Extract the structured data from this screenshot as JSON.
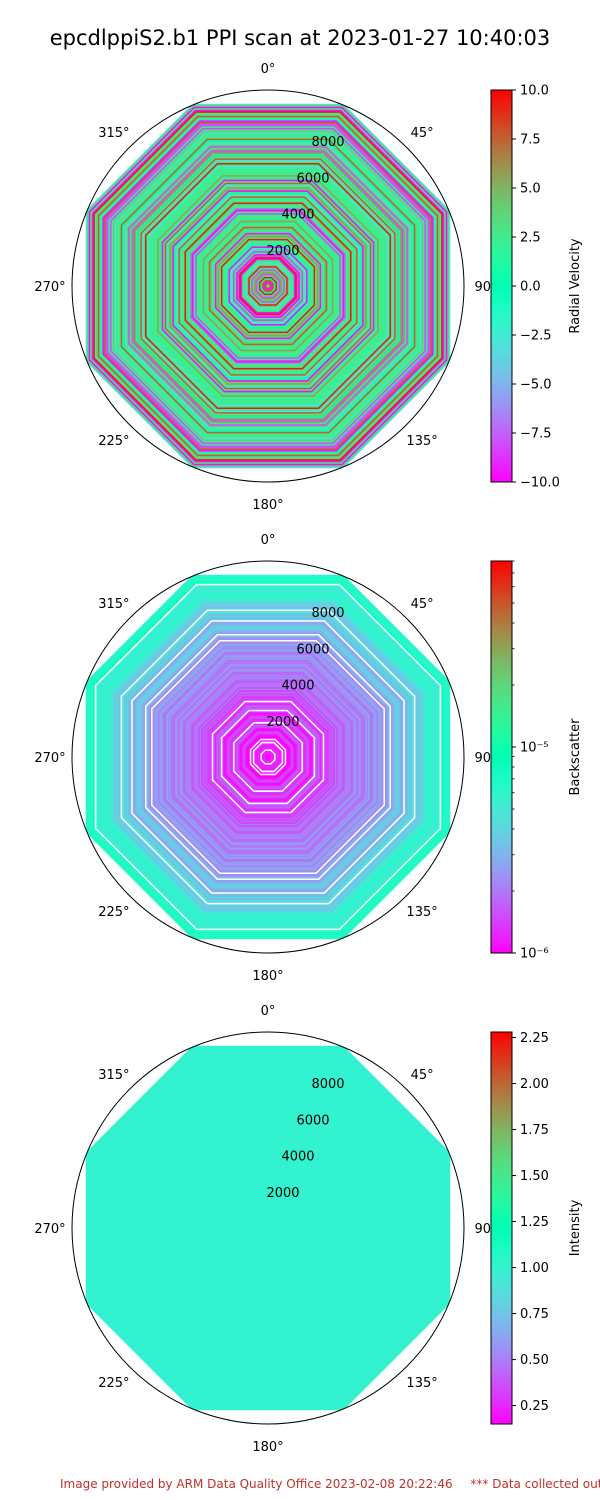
{
  "figure": {
    "title": "epcdlppiS2.b1 PPI scan at 2023-01-27 10:40:03"
  },
  "footer": {
    "provided": "Image provided by ARM Data Quality Office 2023-02-08 20:22:46",
    "note": "*** Data collected outside"
  },
  "chart_data": [
    {
      "type": "polar",
      "colorbar_label": "Radial Velocity",
      "colormap": "rainbow",
      "color_scale": "linear",
      "vmin": -10.0,
      "vmax": 10.0,
      "colorbar_ticks": [
        "10.0",
        "7.5",
        "5.0",
        "2.5",
        "0.0",
        "−2.5",
        "−5.0",
        "−7.5",
        "−10.0"
      ],
      "colorbar_tick_values": [
        10.0,
        7.5,
        5.0,
        2.5,
        0.0,
        -2.5,
        -5.0,
        -7.5,
        -10.0
      ],
      "angle_ticks": [
        "0°",
        "45°",
        "90°",
        "135°",
        "180°",
        "225°",
        "270°",
        "315°"
      ],
      "radial_ticks": [
        "2000",
        "4000",
        "6000",
        "8000"
      ],
      "radial_tick_values": [
        2000,
        4000,
        6000,
        8000
      ],
      "rmax": 10000,
      "pattern": "noisy",
      "dominant_value": 1.5
    },
    {
      "type": "polar",
      "colorbar_label": "Backscatter",
      "colormap": "rainbow",
      "color_scale": "log",
      "vmin": 1e-06,
      "vmax": 8e-05,
      "colorbar_ticks": [
        "10⁻⁵",
        "10⁻⁶"
      ],
      "colorbar_tick_values": [
        1e-05,
        1e-06
      ],
      "angle_ticks": [
        "0°",
        "45°",
        "90°",
        "135°",
        "180°",
        "225°",
        "270°",
        "315°"
      ],
      "radial_ticks": [
        "2000",
        "4000",
        "6000",
        "8000"
      ],
      "radial_tick_values": [
        2000,
        4000,
        6000,
        8000
      ],
      "rmax": 10000,
      "pattern": "gradient",
      "dominant_value": 1.2e-06
    },
    {
      "type": "polar",
      "colorbar_label": "Intensity",
      "colormap": "rainbow",
      "color_scale": "linear",
      "vmin": 0.15,
      "vmax": 2.28,
      "colorbar_ticks": [
        "2.25",
        "2.00",
        "1.75",
        "1.50",
        "1.25",
        "1.00",
        "0.75",
        "0.50",
        "0.25"
      ],
      "colorbar_tick_values": [
        2.25,
        2.0,
        1.75,
        1.5,
        1.25,
        1.0,
        0.75,
        0.5,
        0.25
      ],
      "angle_ticks": [
        "0°",
        "45°",
        "90°",
        "135°",
        "180°",
        "225°",
        "270°",
        "315°"
      ],
      "radial_ticks": [
        "2000",
        "4000",
        "6000",
        "8000"
      ],
      "radial_tick_values": [
        2000,
        4000,
        6000,
        8000
      ],
      "rmax": 10000,
      "pattern": "uniform",
      "dominant_value": 1.0
    }
  ]
}
